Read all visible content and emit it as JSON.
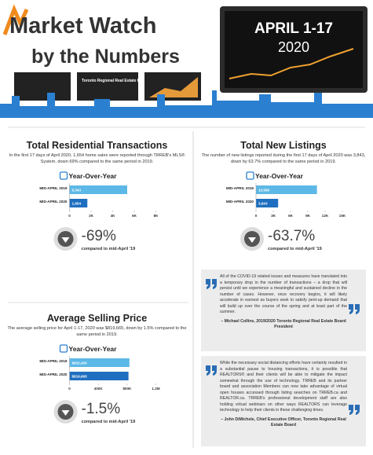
{
  "header": {
    "title": "Market Watch",
    "subtitle": "by the Numbers",
    "date": "APRIL 1-17",
    "year": "2020",
    "board": "Toronto Regional Real Estate Board"
  },
  "sections": [
    {
      "title": "Total Residential Transactions",
      "text": "In the first 17 days of April 2020, 1,654 home sales were reported through TRREB's MLS® System, down 69% compared to the same period in 2019.",
      "chart": {
        "type": "bar",
        "heading": "Year-Over-Year",
        "categories": [
          "MID-APRIL 2019",
          "MID-APRIL 2020"
        ],
        "values": [
          5343,
          1654
        ],
        "value_labels": [
          "5,343",
          "1,654"
        ],
        "colors": [
          "#5cb8e6",
          "#1f6fc0"
        ],
        "xlim": [
          0,
          8000
        ],
        "xticks": [
          0,
          {
            "value": 2000,
            "label": "2K"
          },
          {
            "value": 4000,
            "label": "4K"
          },
          {
            "value": 6000,
            "label": "6K"
          },
          {
            "value": 8000,
            "label": "8K"
          }
        ]
      },
      "change": "-69%",
      "caption": "compared to mid-April '19"
    },
    {
      "title": "Total New Listings",
      "text": "The number of new listings reported during the first 17 days of April 2020 was 3,843, down by 63.7% compared to the same period in 2019.",
      "chart": {
        "type": "bar",
        "heading": "Year-Over-Year",
        "categories": [
          "MID-APRIL 2019",
          "MID-APRIL 2020"
        ],
        "values": [
          10586,
          3843
        ],
        "value_labels": [
          "10,586",
          "3,843"
        ],
        "colors": [
          "#5cb8e6",
          "#1f6fc0"
        ],
        "xlim": [
          0,
          15000
        ],
        "xticks": [
          0,
          {
            "value": 3000,
            "label": "3K"
          },
          {
            "value": 6000,
            "label": "6K"
          },
          {
            "value": 9000,
            "label": "9K"
          },
          {
            "value": 12000,
            "label": "12K"
          },
          {
            "value": 15000,
            "label": "15K"
          }
        ]
      },
      "change": "-63.7%",
      "caption": "compared to mid-April '19"
    },
    {
      "title": "Average Selling Price",
      "text": "The average selling price for April 1-17, 2020 was $819,665, down by 1.5% compared to the same period in 2019.",
      "chart": {
        "type": "bar",
        "heading": "Year-Over-Year",
        "categories": [
          "MID-APRIL 2019",
          "MID-APRIL 2020"
        ],
        "values": [
          832430,
          819665
        ],
        "value_labels": [
          "$832,430",
          "$819,665"
        ],
        "colors": [
          "#5cb8e6",
          "#1f6fc0"
        ],
        "xlim": [
          0,
          1200000
        ],
        "xticks": [
          0,
          {
            "value": 400000,
            "label": "400K"
          },
          {
            "value": 800000,
            "label": "800K"
          },
          {
            "value": 1200000,
            "label": "1.2M"
          }
        ]
      },
      "change": "-1.5%",
      "caption": "compared to mid-April '19"
    }
  ],
  "quotes": [
    {
      "text": "All of the COVID-19 related issues and measures have translated into a temporary drop in the number of transactions – a drop that will persist until we experience a meaningful and sustained decline in the number of cases. However, once recovery begins, it will likely accelerate in earnest as buyers seek to satisfy pent-up demand that will build up over the course of the spring and at least part of the summer.",
      "author": "– Michael Collins, 2019/2020 Toronto Regional Real Estate Board President"
    },
    {
      "text": "While the necessary social distancing efforts have certainly resulted in a substantial pause to housing transactions, it is possible that REALTORS® and their clients will be able to mitigate the impact somewhat through the use of technology. TRREB and its partner board and association Members can now take advantage of virtual open houses accessed through listing searches on TRREB.ca and REALTOR.ca. TRREB's professional development staff are also holding virtual webinars on other ways REALTORS can leverage technology to help their clients in these challenging times.",
      "author": "– John DiMichele, Chief Executive Officer, Toronto Regional Real Estate Board"
    }
  ]
}
